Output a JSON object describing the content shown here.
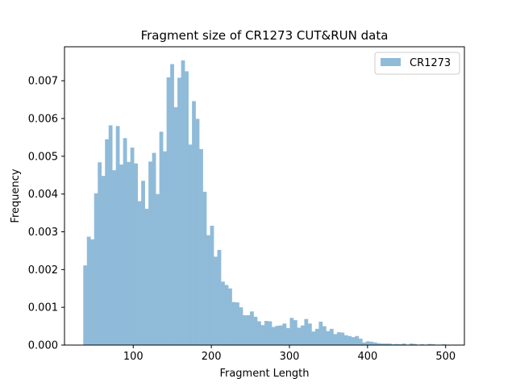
{
  "chart_data": {
    "type": "bar",
    "title": "Fragment size of CR1273 CUT&RUN data",
    "xlabel": "Fragment Length",
    "ylabel": "Frequency",
    "xlim": [
      12,
      524
    ],
    "ylim": [
      0,
      0.0079
    ],
    "xticks": [
      100,
      200,
      300,
      400,
      500
    ],
    "xtick_labels": [
      "100",
      "200",
      "300",
      "400",
      "500"
    ],
    "yticks": [
      0,
      0.001,
      0.002,
      0.003,
      0.004,
      0.005,
      0.006,
      0.007
    ],
    "ytick_labels": [
      "0.000",
      "0.001",
      "0.002",
      "0.003",
      "0.004",
      "0.005",
      "0.006",
      "0.007"
    ],
    "legend": {
      "position": "top-right",
      "entries": [
        "CR1273"
      ]
    },
    "series": [
      {
        "name": "CR1273",
        "color": "#8fbbd9",
        "bin_start": 36,
        "bin_width": 4.64,
        "values": [
          0.00211,
          0.00287,
          0.0028,
          0.00402,
          0.00484,
          0.00448,
          0.00545,
          0.00582,
          0.00463,
          0.0058,
          0.00478,
          0.00548,
          0.00485,
          0.00523,
          0.00481,
          0.00381,
          0.00435,
          0.00361,
          0.00486,
          0.00509,
          0.004,
          0.00565,
          0.00513,
          0.00709,
          0.00744,
          0.0063,
          0.00708,
          0.00754,
          0.00725,
          0.00531,
          0.00646,
          0.00599,
          0.00519,
          0.00406,
          0.00291,
          0.00316,
          0.00234,
          0.00252,
          0.00168,
          0.00159,
          0.0015,
          0.00114,
          0.00113,
          0.001,
          0.00079,
          0.00079,
          0.00089,
          0.00075,
          0.00063,
          0.00053,
          0.00064,
          0.00063,
          0.00048,
          0.00051,
          0.00052,
          0.00057,
          0.00045,
          0.00072,
          0.00066,
          0.00046,
          0.00052,
          0.00069,
          0.00057,
          0.00036,
          0.00043,
          0.00062,
          0.0005,
          0.00037,
          0.00043,
          0.00029,
          0.00034,
          0.00033,
          0.00026,
          0.00024,
          0.00021,
          0.00024,
          0.00017,
          7e-05,
          0.0001,
          9e-05,
          7e-05,
          5e-05,
          4e-05,
          4e-05,
          4e-05,
          2e-05,
          3e-05,
          2e-05,
          4e-05,
          1e-05,
          4e-05,
          3e-05,
          1e-05,
          2e-05,
          1e-05,
          3e-05,
          2e-05,
          1e-05,
          1e-05,
          2e-05
        ]
      }
    ]
  }
}
